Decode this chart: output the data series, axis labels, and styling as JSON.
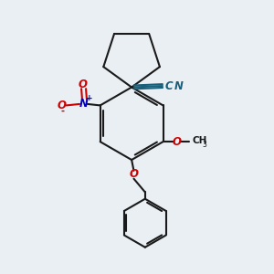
{
  "background_color": "#eaeff3",
  "bond_color": "#1a1a1a",
  "cn_color": "#1a5f7a",
  "no2_n_color": "#0000bb",
  "no2_o_color": "#cc0000",
  "o_color": "#cc0000",
  "figsize": [
    3.0,
    3.0
  ],
  "dpi": 100,
  "xlim": [
    0,
    10
  ],
  "ylim": [
    0,
    10
  ]
}
